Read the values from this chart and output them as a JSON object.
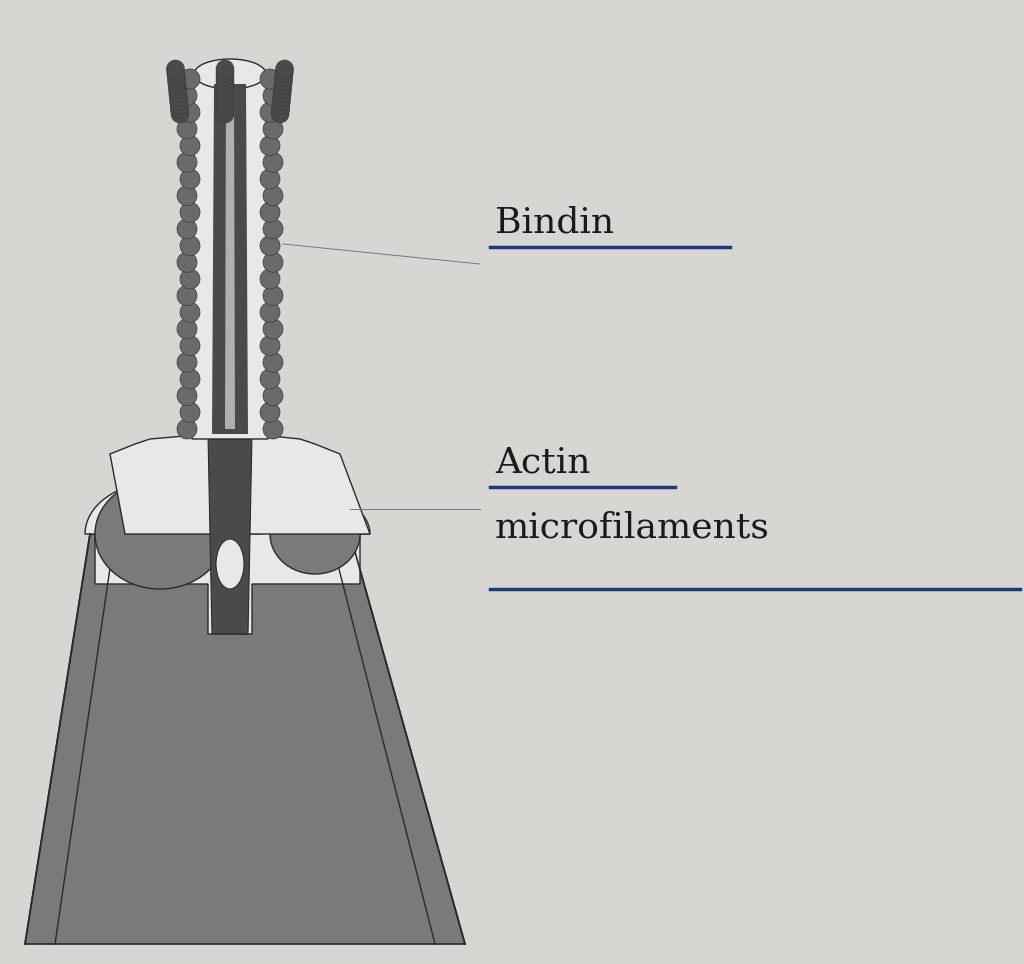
{
  "background_color": "#d8d6d3",
  "label_bindin": "Bindin",
  "label_actin_line1": "Actin",
  "label_actin_line2": "microfilaments",
  "label_text_color": "#1a1a1a",
  "underline_color": "#1a3a7a",
  "annotation_line_color": "#777777",
  "font_size": 26,
  "dark_gray": "#4a4a4a",
  "mid_gray": "#7a7a7a",
  "light_gray": "#c0c0c0",
  "white_ish": "#e8e8e8",
  "outline_color": "#2a2a2a",
  "bump_fill": "#6a6a6a",
  "bump_edge": "#3a3a3a"
}
